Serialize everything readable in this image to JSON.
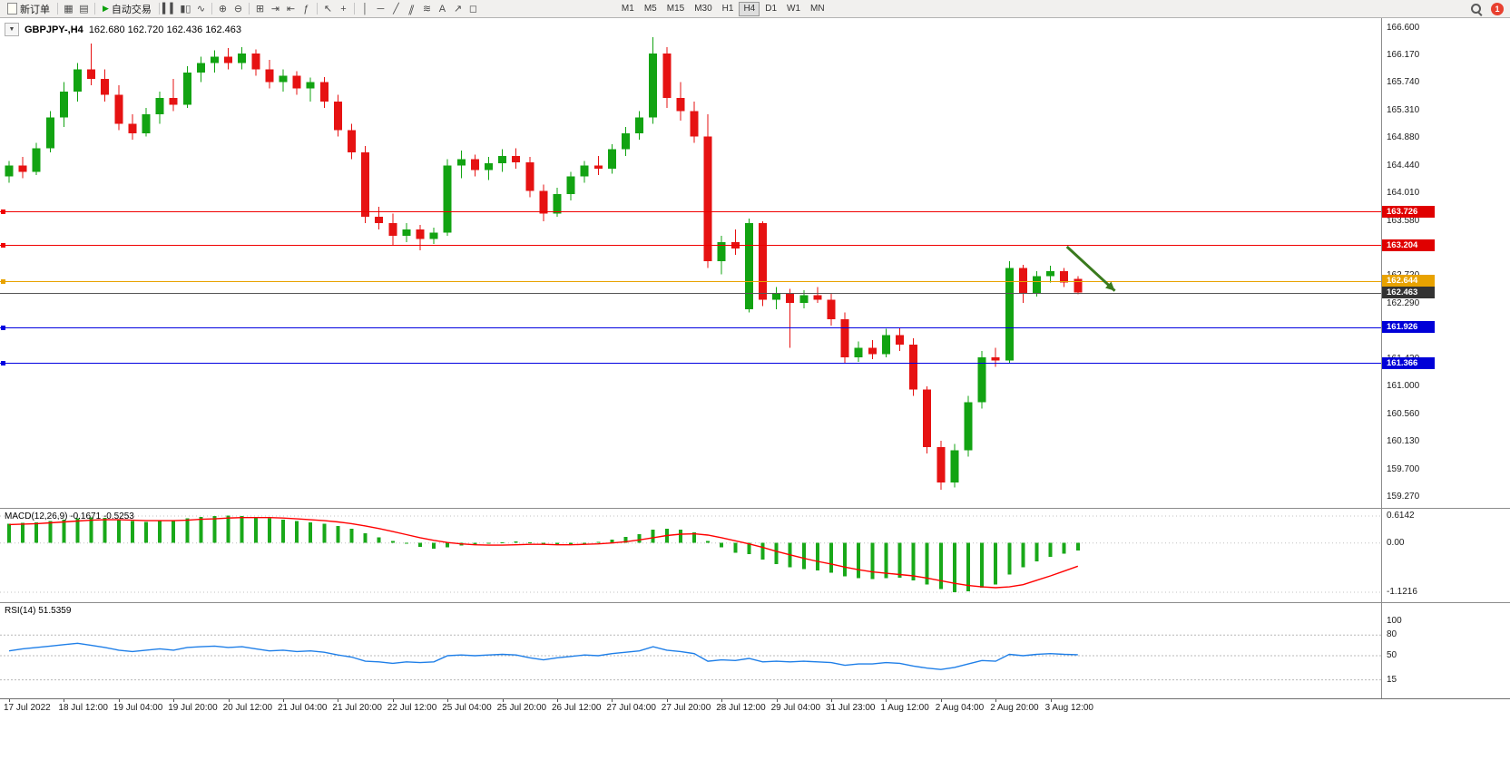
{
  "toolbar": {
    "new_order": "新订单",
    "auto_trading": "自动交易",
    "timeframes": [
      "M1",
      "M5",
      "M15",
      "M30",
      "H1",
      "H4",
      "D1",
      "W1",
      "MN"
    ],
    "active_timeframe": "H4",
    "notification_count": "1",
    "icons": {
      "new_chart": "▦",
      "profiles": "▤",
      "play": "▶",
      "bars": "▍▍",
      "candles": "▮▯",
      "line_chart": "∿",
      "zoom_in": "⊕",
      "zoom_out": "⊖",
      "tile": "⊞",
      "autoscroll": "⇥",
      "shift": "⇤",
      "indicators": "ƒ",
      "cursor": "↖",
      "crosshair": "+",
      "vline": "│",
      "hline": "─",
      "trendline": "╱",
      "channel": "∥",
      "fibo": "≋",
      "text_tool": "A",
      "arrow_tool": "↗",
      "shapes": "◻",
      "collapse": "▼"
    }
  },
  "chart_header": {
    "symbol": "GBPJPY-,H4",
    "ohlc": "162.680 162.720 162.436 162.463"
  },
  "macd_header": "MACD(12,26,9) -0.1671 -0.5253",
  "rsi_header": "RSI(14) 51.5359",
  "chart_data": [
    {
      "type": "candlestick",
      "symbol": "GBPJPY-",
      "timeframe": "H4",
      "ohlc_display": {
        "open": "162.680",
        "high": "162.720",
        "low": "162.436",
        "close": "162.463"
      },
      "ylim": [
        159.1,
        166.75
      ],
      "y_ticks": [
        "166.600",
        "166.170",
        "165.740",
        "165.310",
        "164.880",
        "164.440",
        "164.010",
        "163.580",
        "163.150",
        "162.720",
        "162.290",
        "161.860",
        "161.430",
        "161.000",
        "160.560",
        "160.130",
        "159.700",
        "159.270"
      ],
      "time_labels": [
        "17 Jul 2022",
        "18 Jul 12:00",
        "19 Jul 04:00",
        "19 Jul 20:00",
        "20 Jul 12:00",
        "21 Jul 04:00",
        "21 Jul 20:00",
        "22 Jul 12:00",
        "25 Jul 04:00",
        "25 Jul 20:00",
        "26 Jul 12:00",
        "27 Jul 04:00",
        "27 Jul 20:00",
        "28 Jul 12:00",
        "29 Jul 04:00",
        "31 Jul 23:00",
        "1 Aug 12:00",
        "2 Aug 04:00",
        "2 Aug 20:00",
        "3 Aug 12:00"
      ],
      "bars_per_label": 4,
      "bull_color": "#12a312",
      "bear_color": "#e61212",
      "candles": [
        [
          164.28,
          164.52,
          164.18,
          164.45
        ],
        [
          164.45,
          164.58,
          164.25,
          164.35
        ],
        [
          164.35,
          164.8,
          164.3,
          164.72
        ],
        [
          164.72,
          165.3,
          164.65,
          165.2
        ],
        [
          165.2,
          165.75,
          165.05,
          165.6
        ],
        [
          165.6,
          166.05,
          165.45,
          165.95
        ],
        [
          165.95,
          166.35,
          165.7,
          165.8
        ],
        [
          165.8,
          165.95,
          165.45,
          165.55
        ],
        [
          165.55,
          165.7,
          165.0,
          165.1
        ],
        [
          165.1,
          165.25,
          164.85,
          164.95
        ],
        [
          164.95,
          165.35,
          164.9,
          165.25
        ],
        [
          165.25,
          165.6,
          165.1,
          165.5
        ],
        [
          165.5,
          165.8,
          165.3,
          165.4
        ],
        [
          165.4,
          166.0,
          165.35,
          165.9
        ],
        [
          165.9,
          166.15,
          165.75,
          166.05
        ],
        [
          166.05,
          166.25,
          165.9,
          166.15
        ],
        [
          166.15,
          166.28,
          165.95,
          166.05
        ],
        [
          166.05,
          166.3,
          165.95,
          166.2
        ],
        [
          166.2,
          166.26,
          165.85,
          165.95
        ],
        [
          165.95,
          166.1,
          165.65,
          165.75
        ],
        [
          165.75,
          165.95,
          165.6,
          165.85
        ],
        [
          165.85,
          165.92,
          165.55,
          165.65
        ],
        [
          165.65,
          165.82,
          165.45,
          165.75
        ],
        [
          165.75,
          165.83,
          165.35,
          165.45
        ],
        [
          165.45,
          165.55,
          164.9,
          165.0
        ],
        [
          165.0,
          165.1,
          164.55,
          164.65
        ],
        [
          164.65,
          164.75,
          163.55,
          163.65
        ],
        [
          163.65,
          163.8,
          163.45,
          163.55
        ],
        [
          163.55,
          163.7,
          163.2,
          163.35
        ],
        [
          163.35,
          163.55,
          163.25,
          163.45
        ],
        [
          163.45,
          163.52,
          163.12,
          163.3
        ],
        [
          163.3,
          163.48,
          163.22,
          163.4
        ],
        [
          163.4,
          164.55,
          163.35,
          164.45
        ],
        [
          164.45,
          164.68,
          164.25,
          164.55
        ],
        [
          164.55,
          164.62,
          164.28,
          164.38
        ],
        [
          164.38,
          164.58,
          164.22,
          164.48
        ],
        [
          164.48,
          164.7,
          164.35,
          164.6
        ],
        [
          164.6,
          164.72,
          164.4,
          164.5
        ],
        [
          164.5,
          164.58,
          163.95,
          164.05
        ],
        [
          164.05,
          164.15,
          163.58,
          163.7
        ],
        [
          163.7,
          164.1,
          163.65,
          164.0
        ],
        [
          164.0,
          164.35,
          163.9,
          164.28
        ],
        [
          164.28,
          164.52,
          164.18,
          164.45
        ],
        [
          164.45,
          164.6,
          164.3,
          164.4
        ],
        [
          164.4,
          164.78,
          164.32,
          164.7
        ],
        [
          164.7,
          165.05,
          164.6,
          164.95
        ],
        [
          164.95,
          165.3,
          164.85,
          165.2
        ],
        [
          165.2,
          166.45,
          165.1,
          166.2
        ],
        [
          166.2,
          166.3,
          165.35,
          165.5
        ],
        [
          165.5,
          165.75,
          165.15,
          165.3
        ],
        [
          165.3,
          165.45,
          164.8,
          164.9
        ],
        [
          164.9,
          165.25,
          162.85,
          162.95
        ],
        [
          162.95,
          163.35,
          162.75,
          163.25
        ],
        [
          163.25,
          163.45,
          163.05,
          163.15
        ],
        [
          162.2,
          163.62,
          162.15,
          163.55
        ],
        [
          163.55,
          163.58,
          162.25,
          162.35
        ],
        [
          162.35,
          162.55,
          162.2,
          162.45
        ],
        [
          162.45,
          162.52,
          161.6,
          162.3
        ],
        [
          162.3,
          162.5,
          162.22,
          162.42
        ],
        [
          162.42,
          162.55,
          162.3,
          162.35
        ],
        [
          162.35,
          162.45,
          161.95,
          162.05
        ],
        [
          162.05,
          162.15,
          161.35,
          161.45
        ],
        [
          161.45,
          161.7,
          161.38,
          161.6
        ],
        [
          161.6,
          161.72,
          161.42,
          161.5
        ],
        [
          161.5,
          161.9,
          161.45,
          161.8
        ],
        [
          161.8,
          161.92,
          161.55,
          161.65
        ],
        [
          161.65,
          161.75,
          160.85,
          160.95
        ],
        [
          160.95,
          161.0,
          159.95,
          160.05
        ],
        [
          160.05,
          160.15,
          159.38,
          159.5
        ],
        [
          159.5,
          160.1,
          159.42,
          160.0
        ],
        [
          160.0,
          160.85,
          159.9,
          160.75
        ],
        [
          160.75,
          161.55,
          160.65,
          161.45
        ],
        [
          161.45,
          161.6,
          161.3,
          161.4
        ],
        [
          161.4,
          162.95,
          161.35,
          162.85
        ],
        [
          162.85,
          162.9,
          162.3,
          162.45
        ],
        [
          162.45,
          162.8,
          162.4,
          162.72
        ],
        [
          162.72,
          162.88,
          162.62,
          162.8
        ],
        [
          162.8,
          162.85,
          162.55,
          162.62
        ],
        [
          162.68,
          162.72,
          162.436,
          162.463
        ]
      ],
      "hlines": [
        {
          "price": 163.726,
          "label": "163.726",
          "color": "#f00000",
          "badge_bg": "#e00000"
        },
        {
          "price": 163.204,
          "label": "163.204",
          "color": "#f00000",
          "badge_bg": "#e00000"
        },
        {
          "price": 162.644,
          "label": "162.644",
          "color": "#e8a200",
          "badge_bg": "#e8a200"
        },
        {
          "price": 162.463,
          "label": "162.463",
          "color": "#555555",
          "badge_bg": "#333333",
          "type": "current"
        },
        {
          "price": 161.926,
          "label": "161.926",
          "color": "#0000e0",
          "badge_bg": "#0000d8"
        },
        {
          "price": 161.366,
          "label": "161.366",
          "color": "#0000e0",
          "badge_bg": "#0000d8"
        }
      ],
      "arrow": {
        "from_bar": 77.2,
        "from_price": 163.18,
        "to_bar": 80.7,
        "to_price": 162.49,
        "color": "#3a7a1e"
      }
    },
    {
      "type": "bar",
      "name": "MACD",
      "params": "12,26,9",
      "main_value": -0.1671,
      "signal_value": -0.5253,
      "ylim": [
        -1.35,
        0.78
      ],
      "y_ticks": [
        {
          "v": 0.6142,
          "label": "0.6142"
        },
        {
          "v": 0,
          "label": "0.00"
        },
        {
          "v": -1.1216,
          "label": "-1.1216"
        }
      ],
      "bar_color": "#19a819",
      "signal_color": "#ff0000",
      "series": [
        {
          "name": "MACD histogram",
          "values": [
            0.44,
            0.46,
            0.47,
            0.5,
            0.53,
            0.56,
            0.58,
            0.57,
            0.54,
            0.5,
            0.48,
            0.5,
            0.52,
            0.56,
            0.59,
            0.61,
            0.62,
            0.61,
            0.59,
            0.56,
            0.53,
            0.5,
            0.47,
            0.44,
            0.39,
            0.32,
            0.22,
            0.13,
            0.05,
            -0.02,
            -0.09,
            -0.13,
            -0.1,
            -0.06,
            -0.04,
            -0.02,
            0.01,
            0.04,
            0.02,
            -0.03,
            -0.05,
            -0.04,
            0.0,
            0.03,
            0.08,
            0.14,
            0.2,
            0.3,
            0.33,
            0.3,
            0.24,
            0.05,
            -0.1,
            -0.22,
            -0.25,
            -0.38,
            -0.48,
            -0.55,
            -0.6,
            -0.63,
            -0.68,
            -0.76,
            -0.8,
            -0.82,
            -0.8,
            -0.79,
            -0.85,
            -0.95,
            -1.05,
            -1.12,
            -1.1,
            -1.02,
            -0.95,
            -0.72,
            -0.55,
            -0.42,
            -0.32,
            -0.24,
            -0.17
          ]
        },
        {
          "name": "Signal",
          "type": "line",
          "values": [
            0.42,
            0.43,
            0.44,
            0.46,
            0.48,
            0.5,
            0.52,
            0.53,
            0.53,
            0.52,
            0.51,
            0.51,
            0.51,
            0.52,
            0.54,
            0.55,
            0.57,
            0.58,
            0.58,
            0.58,
            0.57,
            0.55,
            0.53,
            0.51,
            0.48,
            0.44,
            0.39,
            0.33,
            0.26,
            0.19,
            0.12,
            0.06,
            0.01,
            -0.02,
            -0.04,
            -0.05,
            -0.05,
            -0.04,
            -0.03,
            -0.03,
            -0.04,
            -0.04,
            -0.03,
            -0.02,
            0.0,
            0.03,
            0.07,
            0.12,
            0.17,
            0.2,
            0.21,
            0.18,
            0.12,
            0.05,
            -0.02,
            -0.1,
            -0.19,
            -0.27,
            -0.35,
            -0.42,
            -0.48,
            -0.55,
            -0.61,
            -0.66,
            -0.69,
            -0.72,
            -0.75,
            -0.8,
            -0.86,
            -0.92,
            -0.97,
            -1.0,
            -1.02,
            -1.0,
            -0.95,
            -0.85,
            -0.75,
            -0.64,
            -0.53
          ]
        }
      ]
    },
    {
      "type": "line",
      "name": "RSI",
      "params": "14",
      "current_value": 51.5359,
      "levels": [
        80,
        50,
        15
      ],
      "y_ticks": [
        {
          "v": 100,
          "label": "100"
        },
        {
          "v": 80,
          "label": "80"
        },
        {
          "v": 50,
          "label": "50"
        },
        {
          "v": 15,
          "label": "15"
        }
      ],
      "line_color": "#1f7fe8",
      "values": [
        57,
        60,
        62,
        64,
        66,
        68,
        65,
        62,
        58,
        56,
        58,
        60,
        58,
        62,
        63,
        64,
        62,
        63,
        60,
        57,
        58,
        56,
        57,
        55,
        51,
        48,
        42,
        41,
        39,
        41,
        40,
        41,
        50,
        51,
        50,
        51,
        52,
        51,
        47,
        44,
        47,
        49,
        51,
        50,
        53,
        55,
        57,
        63,
        58,
        56,
        53,
        42,
        44,
        43,
        46,
        41,
        42,
        41,
        42,
        41,
        40,
        36,
        38,
        38,
        40,
        39,
        35,
        32,
        30,
        33,
        38,
        43,
        42,
        52,
        50,
        52,
        53,
        52,
        51.5
      ]
    }
  ]
}
